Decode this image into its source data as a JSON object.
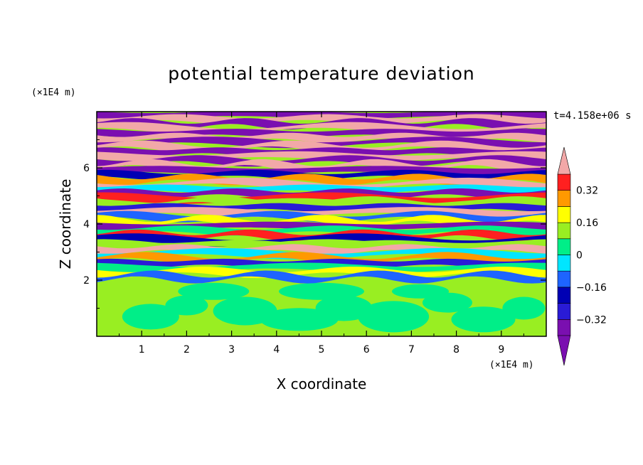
{
  "chart_data": {
    "type": "heatmap",
    "title": "potential temperature deviation",
    "xlabel": "X coordinate",
    "ylabel": "Z coordinate",
    "x_unit": "(×1E4 m)",
    "y_unit": "(×1E4 m)",
    "time_label": "t=4.158e+06 s",
    "xlim": [
      0,
      10
    ],
    "ylim": [
      0,
      8
    ],
    "x_ticks": [
      "1",
      "2",
      "3",
      "4",
      "5",
      "6",
      "7",
      "8",
      "9"
    ],
    "y_ticks": [
      "2",
      "4",
      "6"
    ],
    "colorbar": {
      "levels": [
        -0.4,
        -0.32,
        -0.24,
        -0.16,
        -0.08,
        0,
        0.08,
        0.16,
        0.24,
        0.32,
        0.4
      ],
      "labels": [
        "0.32",
        "0.16",
        "0",
        "−0.16",
        "−0.32"
      ],
      "label_values": [
        0.32,
        0.16,
        0,
        -0.16,
        -0.32
      ],
      "colors": [
        "#7a0fb0",
        "#2a1bd6",
        "#0000b4",
        "#1e64ff",
        "#00e6ff",
        "#00ee88",
        "#99ee22",
        "#ffff00",
        "#ff9900",
        "#ff2020",
        "#f2a8a8"
      ],
      "extend": "both"
    }
  }
}
